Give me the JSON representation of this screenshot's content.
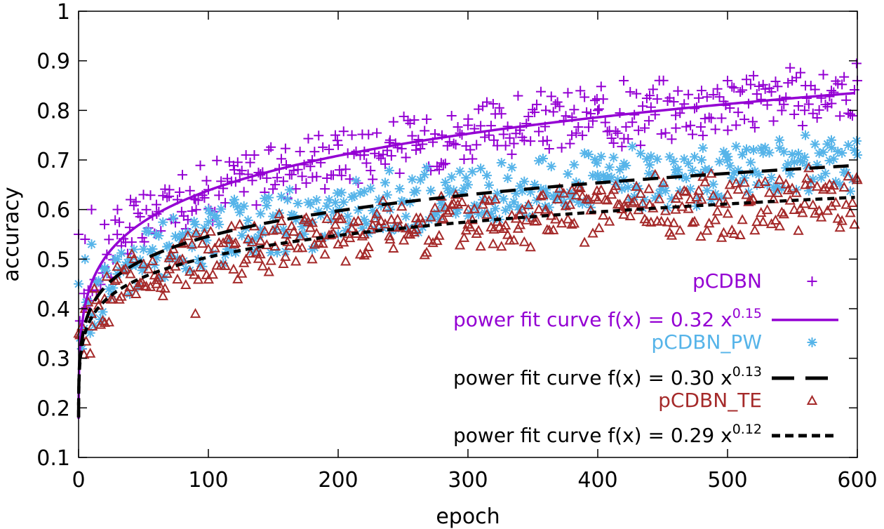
{
  "chart_data": {
    "type": "scatter",
    "title": "",
    "xlabel": "epoch",
    "ylabel": "accuracy",
    "xlim": [
      0,
      600
    ],
    "ylim": [
      0.1,
      1
    ],
    "xticks": [
      "0",
      "100",
      "200",
      "300",
      "400",
      "500",
      "600"
    ],
    "yticks": [
      "0.1",
      "0.2",
      "0.3",
      "0.4",
      "0.5",
      "0.6",
      "0.7",
      "0.8",
      "0.9",
      "1"
    ],
    "grid": false,
    "legend_position": "bottom-right",
    "colors": {
      "pCDBN": "#9400d3",
      "pCDBN_PW": "#56b4e9",
      "pCDBN_TE": "#a52a2a",
      "fit_line": "#000000"
    },
    "series": [
      {
        "name": "pCDBN",
        "marker": "plus",
        "color": "#9400d3",
        "approx_trend": {
          "a": 0.32,
          "b": 0.15
        },
        "x": [
          0,
          5,
          10,
          20,
          30,
          40,
          50,
          60,
          70,
          80,
          90,
          100,
          120,
          140,
          160,
          180,
          200,
          220,
          240,
          260,
          280,
          300,
          320,
          340,
          360,
          380,
          400,
          420,
          440,
          460,
          480,
          500,
          520,
          540,
          560,
          580,
          600
        ],
        "values": [
          0.55,
          0.54,
          0.6,
          0.57,
          0.6,
          0.62,
          0.63,
          0.61,
          0.64,
          0.67,
          0.62,
          0.64,
          0.68,
          0.67,
          0.69,
          0.7,
          0.73,
          0.71,
          0.74,
          0.72,
          0.75,
          0.77,
          0.74,
          0.76,
          0.8,
          0.75,
          0.8,
          0.86,
          0.83,
          0.79,
          0.84,
          0.86,
          0.87,
          0.82,
          0.85,
          0.84,
          0.86
        ]
      },
      {
        "name": "pCDBN_PW",
        "marker": "asterisk",
        "color": "#56b4e9",
        "approx_trend": {
          "a": 0.3,
          "b": 0.13
        },
        "x": [
          0,
          5,
          10,
          20,
          30,
          40,
          50,
          60,
          70,
          80,
          90,
          100,
          120,
          140,
          160,
          180,
          200,
          220,
          240,
          260,
          280,
          300,
          320,
          340,
          360,
          380,
          400,
          420,
          440,
          460,
          480,
          500,
          520,
          540,
          560,
          580,
          600
        ],
        "values": [
          0.45,
          0.5,
          0.53,
          0.48,
          0.47,
          0.5,
          0.52,
          0.55,
          0.5,
          0.55,
          0.57,
          0.6,
          0.62,
          0.56,
          0.55,
          0.52,
          0.55,
          0.58,
          0.6,
          0.57,
          0.62,
          0.65,
          0.62,
          0.6,
          0.64,
          0.63,
          0.67,
          0.66,
          0.69,
          0.68,
          0.7,
          0.7,
          0.72,
          0.74,
          0.75,
          0.74,
          0.71
        ]
      },
      {
        "name": "pCDBN_TE",
        "marker": "triangle",
        "color": "#a52a2a",
        "approx_trend": {
          "a": 0.29,
          "b": 0.12
        },
        "x": [
          0,
          5,
          10,
          20,
          30,
          40,
          50,
          60,
          70,
          80,
          90,
          100,
          120,
          140,
          160,
          180,
          200,
          220,
          240,
          260,
          280,
          300,
          320,
          340,
          360,
          380,
          400,
          420,
          440,
          460,
          480,
          500,
          520,
          540,
          560,
          580,
          600
        ],
        "values": [
          0.35,
          0.4,
          0.39,
          0.42,
          0.46,
          0.47,
          0.49,
          0.45,
          0.48,
          0.5,
          0.39,
          0.52,
          0.53,
          0.51,
          0.55,
          0.5,
          0.53,
          0.55,
          0.54,
          0.56,
          0.58,
          0.57,
          0.56,
          0.59,
          0.6,
          0.57,
          0.62,
          0.59,
          0.61,
          0.6,
          0.62,
          0.63,
          0.62,
          0.66,
          0.65,
          0.64,
          0.66
        ]
      }
    ],
    "fits": [
      {
        "name": "power fit curve f(x) = 0.32 x^0.15",
        "a": 0.32,
        "b": 0.15,
        "style": "solid",
        "color": "#9400d3"
      },
      {
        "name": "power fit curve f(x) = 0.30 x^0.13",
        "a": 0.3,
        "b": 0.13,
        "style": "long-dash",
        "color": "#000000"
      },
      {
        "name": "power fit curve f(x) = 0.29 x^0.12",
        "a": 0.29,
        "b": 0.12,
        "style": "short-dash",
        "color": "#000000"
      }
    ],
    "legend": [
      {
        "label": "pCDBN",
        "color": "#9400d3",
        "kind": "marker",
        "marker": "plus"
      },
      {
        "label_base": "power fit curve f(x) = 0.32 x",
        "label_exp": "0.15",
        "color": "#9400d3",
        "kind": "line",
        "style": "solid"
      },
      {
        "label": "pCDBN_PW",
        "color": "#56b4e9",
        "kind": "marker",
        "marker": "asterisk"
      },
      {
        "label_base": "power fit curve f(x) = 0.30 x",
        "label_exp": "0.13",
        "color": "#000000",
        "kind": "line",
        "style": "long-dash"
      },
      {
        "label": "pCDBN_TE",
        "color": "#a52a2a",
        "kind": "marker",
        "marker": "triangle"
      },
      {
        "label_base": "power fit curve f(x) = 0.29 x",
        "label_exp": "0.12",
        "color": "#000000",
        "kind": "line",
        "style": "short-dash"
      }
    ]
  }
}
